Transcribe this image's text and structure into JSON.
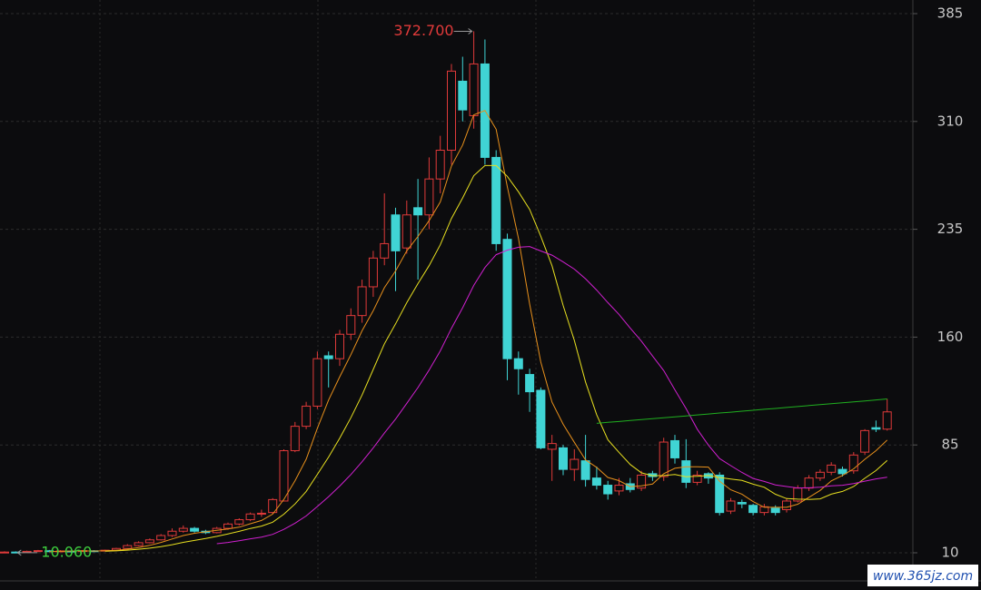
{
  "chart_data": {
    "type": "candlestick",
    "up_color": "#e03a3a",
    "down_color": "#40d4d4",
    "ylim": [
      10,
      385
    ],
    "yticks": [
      10,
      85,
      160,
      235,
      310,
      385
    ],
    "grid": true,
    "candles": {
      "open": [
        10,
        10.5,
        10.3,
        11,
        11.4,
        11,
        11.2,
        11,
        11.4,
        11.2,
        11.8,
        13,
        15,
        17,
        19,
        22,
        25,
        27,
        25,
        24,
        27,
        30,
        33,
        37,
        38,
        46,
        81,
        98,
        112,
        147,
        145,
        162,
        175,
        195,
        215,
        245,
        222,
        250,
        245,
        270,
        290,
        338,
        314,
        350,
        285,
        228,
        145,
        134,
        123,
        82,
        83,
        68,
        74,
        62,
        57,
        53,
        58,
        55,
        65,
        63,
        88,
        74,
        59,
        65,
        64,
        39,
        45,
        43,
        38,
        41,
        40,
        46,
        55,
        62,
        66,
        68,
        67,
        80,
        97,
        96
      ],
      "close": [
        10.5,
        10.2,
        11,
        11.5,
        11,
        11.3,
        11,
        11.5,
        11.2,
        11.8,
        13,
        15,
        17,
        19,
        22,
        25,
        27,
        25,
        24,
        27,
        30,
        33,
        37,
        37.5,
        47,
        81,
        98,
        112,
        145,
        145,
        162,
        175,
        195,
        215,
        225,
        220,
        245,
        245,
        270,
        290,
        345,
        318,
        350,
        285,
        225,
        145,
        138,
        122,
        83,
        86,
        68,
        75,
        61,
        57,
        51,
        57,
        54,
        64,
        63,
        87,
        76,
        59,
        64,
        62,
        38,
        46,
        44,
        38,
        42,
        38,
        46,
        55,
        62,
        66,
        71,
        65,
        78,
        95,
        96,
        108
      ],
      "low": [
        10,
        10.06,
        10.1,
        10.8,
        10.5,
        10.7,
        10.6,
        10.8,
        10.9,
        11,
        11.5,
        12.8,
        14.5,
        16.5,
        18.5,
        21,
        24,
        24,
        23,
        23.5,
        26,
        29,
        32,
        35,
        37,
        46,
        80,
        96,
        110,
        125,
        140,
        158,
        170,
        188,
        210,
        192,
        218,
        200,
        235,
        260,
        280,
        310,
        305,
        280,
        220,
        130,
        120,
        108,
        82,
        60,
        64,
        60,
        56,
        54,
        47,
        50,
        52,
        53,
        60,
        60,
        72,
        55,
        57,
        58,
        36,
        37,
        41,
        36,
        36,
        36,
        38,
        45,
        53,
        60,
        64,
        63,
        65,
        78,
        94,
        95
      ],
      "high": [
        11,
        11,
        11.5,
        12,
        12,
        11.8,
        11.6,
        12,
        11.8,
        12.2,
        13.5,
        16,
        18,
        20,
        23,
        27,
        29,
        28,
        26,
        28,
        31,
        34,
        38,
        40,
        48,
        82,
        101,
        115,
        150,
        150,
        165,
        180,
        200,
        220,
        260,
        250,
        255,
        270,
        285,
        300,
        350,
        355,
        372.7,
        367,
        290,
        232,
        150,
        138,
        125,
        92,
        85,
        82,
        92,
        70,
        60,
        62,
        62,
        67,
        67,
        90,
        92,
        89,
        67,
        66,
        66,
        48,
        47,
        44,
        44,
        43,
        48,
        57,
        64,
        68,
        73,
        70,
        80,
        96,
        102,
        117
      ]
    },
    "lines": [
      {
        "color": "#e8901c",
        "values": [
          null,
          null,
          null,
          null,
          10.8,
          11.0,
          11.2,
          11.3,
          11.2,
          11.4,
          11.7,
          12.5,
          13.6,
          15.2,
          17.2,
          19.6,
          22,
          23.6,
          24.6,
          25.6,
          26.6,
          27.8,
          30.2,
          32.5,
          36.9,
          47.1,
          60.1,
          75.1,
          96.6,
          116.2,
          132.4,
          147.8,
          164.4,
          178.4,
          194.4,
          206,
          220,
          230,
          241,
          254,
          279,
          293.6,
          314.6,
          317.6,
          304.6,
          264.6,
          228.6,
          183,
          142.6,
          114.8,
          99.4,
          86.8,
          74.6,
          69.4,
          62.4,
          60.2,
          56,
          56.6,
          57.8,
          65,
          68.8,
          69.8,
          69.8,
          69.6,
          59.8,
          53.8,
          50.8,
          45.6,
          41.6,
          41.6,
          41.6,
          43.8,
          48.6,
          53.4,
          60,
          63.8,
          68.4,
          75,
          81,
          88.4
        ]
      },
      {
        "color": "#e8e020",
        "values": [
          null,
          null,
          null,
          null,
          null,
          null,
          null,
          null,
          null,
          11.1,
          11.35,
          11.85,
          12.45,
          13.2,
          14.3,
          15.65,
          17.25,
          18.6,
          19.9,
          21.4,
          23.1,
          24.9,
          26.9,
          28.55,
          31.25,
          36.85,
          43.95,
          52.65,
          64.55,
          76.55,
          89.75,
          103.95,
          119.75,
          137.5,
          155.3,
          169.2,
          183.9,
          197.2,
          209.7,
          224.2,
          242.5,
          256.8,
          272.3,
          279.3,
          279.3,
          271.8,
          261.1,
          248.8,
          230.1,
          209.7,
          182,
          157.7,
          128.8,
          106,
          88.6,
          79.8,
          71.4,
          65.6,
          63.6,
          63.7,
          64.5,
          62.9,
          63.2,
          63.7,
          62.4,
          61.3,
          60.3,
          57.7,
          55.6,
          50.7,
          47.7,
          47.3,
          47.1,
          47.5,
          50.8,
          52.7,
          56.1,
          61.8,
          67.2,
          74.2
        ]
      },
      {
        "color": "#d020d0",
        "values": [
          null,
          null,
          null,
          null,
          null,
          null,
          null,
          null,
          null,
          null,
          null,
          null,
          null,
          null,
          null,
          null,
          null,
          null,
          null,
          16.3,
          17.2,
          18.4,
          19.7,
          20.9,
          22.8,
          26.3,
          30.6,
          35.6,
          42.2,
          49,
          56.4,
          64.4,
          73.3,
          83,
          93.3,
          103,
          113.9,
          124.9,
          137.1,
          150.4,
          166.1,
          180.4,
          196,
          208.4,
          217.3,
          220.5,
          222.5,
          223,
          219.9,
          217,
          212.3,
          207.3,
          200.6,
          192.7,
          184,
          175.8,
          166.3,
          157.2,
          146.9,
          136.7,
          123.3,
          110.3,
          96,
          84.9,
          75.5,
          70.6,
          65.9,
          61.7,
          59.6,
          57.2,
          56.1,
          55.1,
          55.2,
          55.6,
          56.6,
          57,
          58.2,
          59.8,
          61.4,
          62.5
        ]
      },
      {
        "color": "#20b020",
        "values": [
          null,
          null,
          null,
          null,
          null,
          null,
          null,
          null,
          null,
          null,
          null,
          null,
          null,
          null,
          null,
          null,
          null,
          null,
          null,
          null,
          null,
          null,
          null,
          null,
          null,
          null,
          null,
          null,
          null,
          null,
          null,
          null,
          null,
          null,
          null,
          null,
          null,
          null,
          null,
          null,
          null,
          null,
          null,
          null,
          null,
          null,
          null,
          null,
          null,
          null,
          null,
          null,
          null,
          100,
          100.7,
          101.3,
          102,
          102.6,
          103.3,
          103.9,
          104.6,
          105.2,
          105.9,
          106.5,
          107.2,
          107.8,
          108.5,
          109.1,
          109.8,
          110.4,
          111.1,
          111.7,
          112.4,
          113,
          113.7,
          114.3,
          115,
          115.6,
          116.3,
          117
        ]
      }
    ],
    "annotations": [
      {
        "label": "372.700",
        "value": 372.7,
        "color": "#e03a3a"
      },
      {
        "label": "10.060",
        "value": 10.06,
        "color": "#3ecf3e"
      }
    ],
    "watermark": "www.365jz.com"
  }
}
